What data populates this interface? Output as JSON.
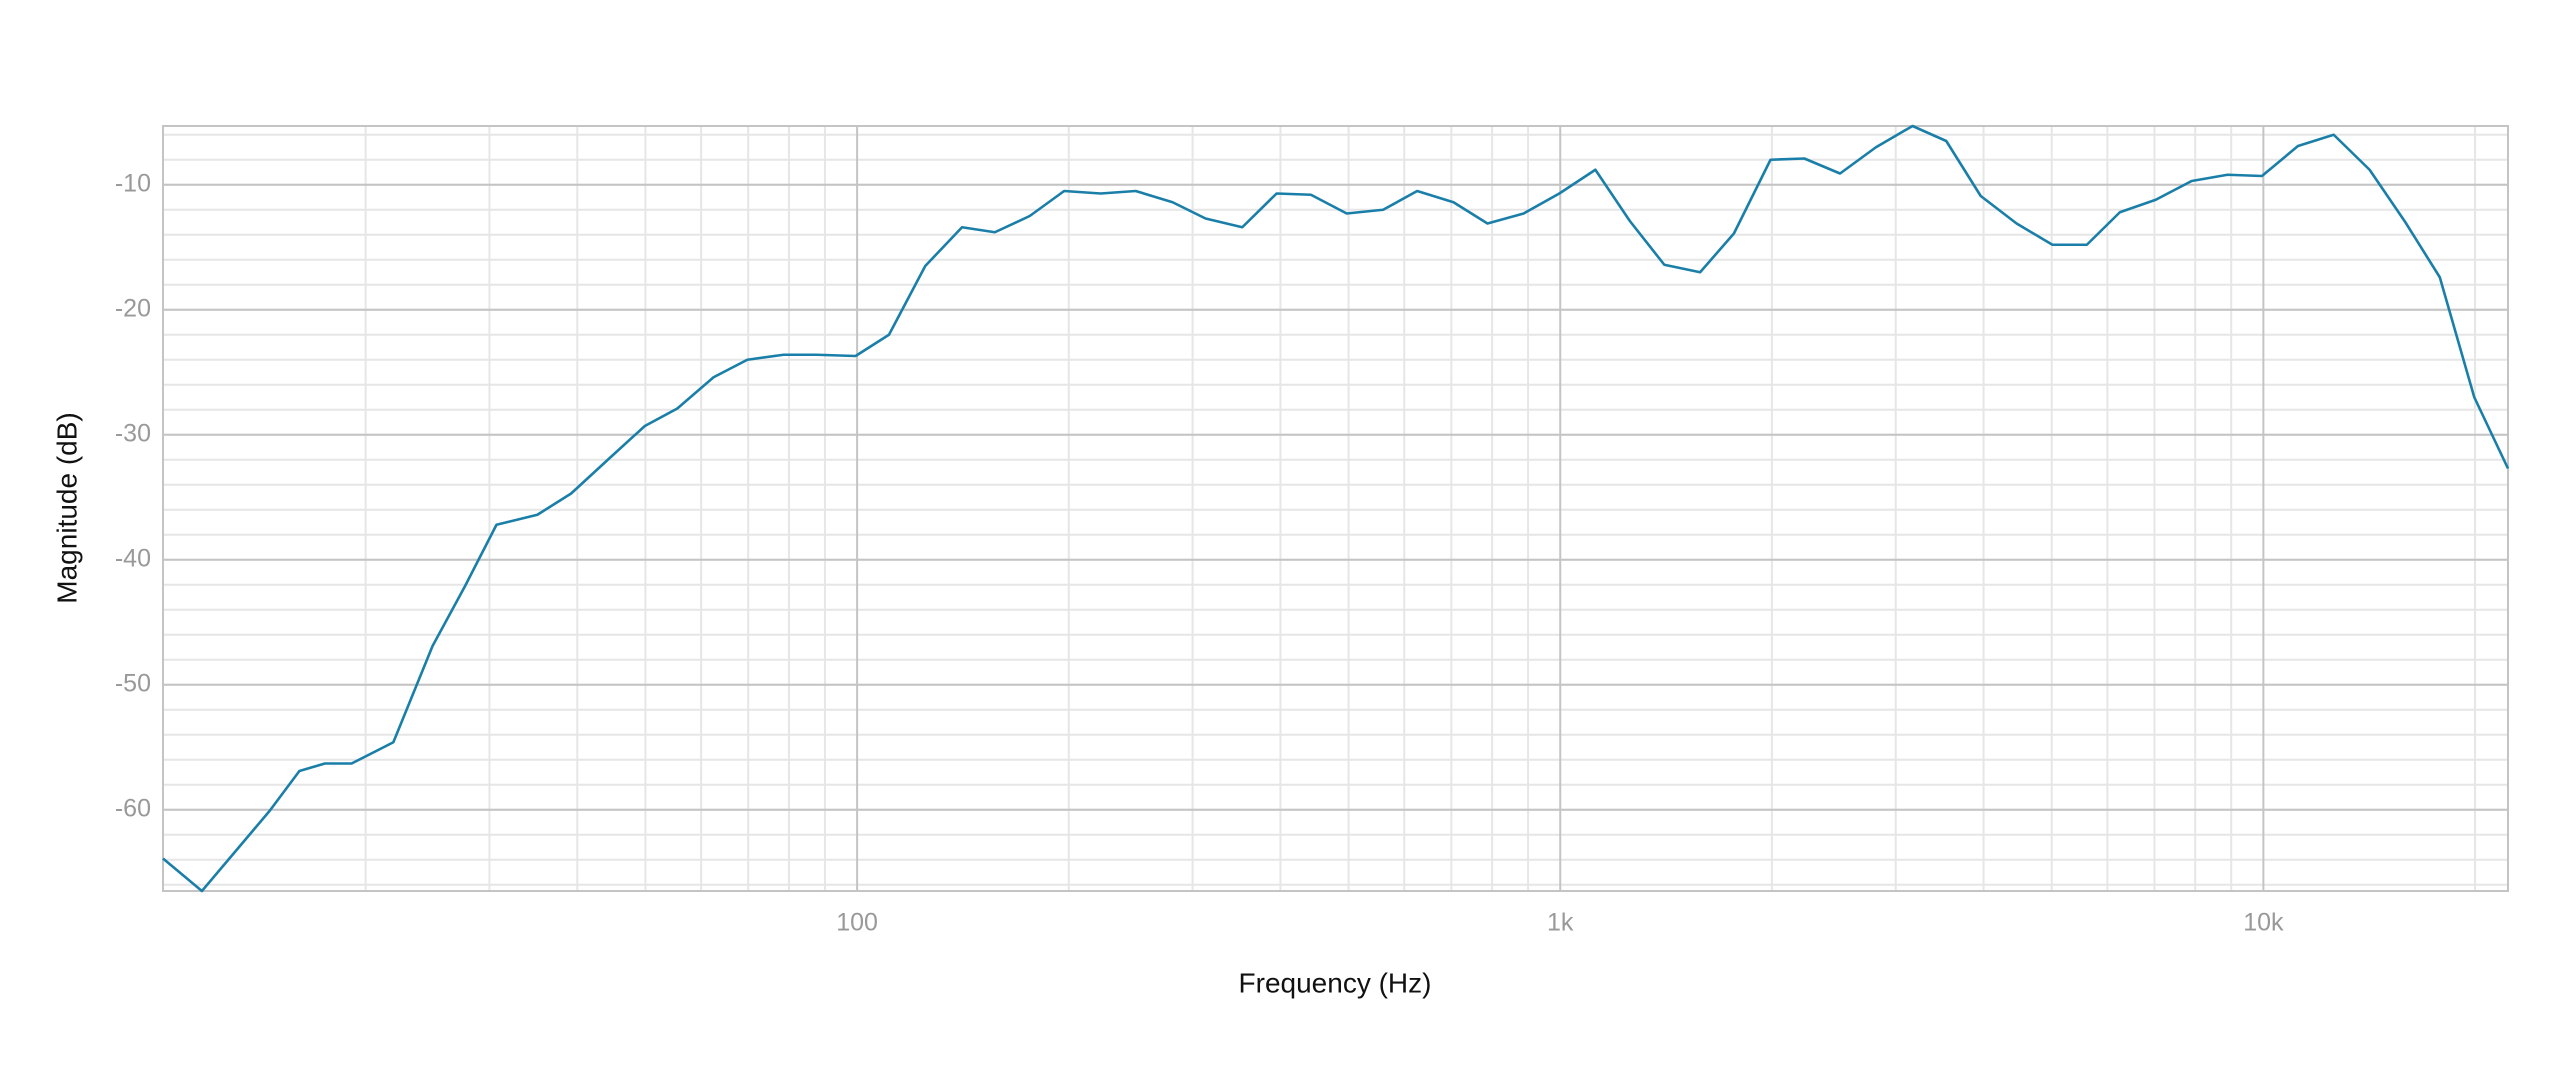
{
  "chart_data": {
    "type": "line",
    "x_label": "Frequency (Hz)",
    "y_label": "Magnitude (dB)",
    "x_scale": "log",
    "grid": true,
    "xlim": [
      10.3,
      22280
    ],
    "ylim": [
      -66.5,
      -5.3
    ],
    "xticks": [
      100,
      {
        "value": 1000,
        "label": "1k"
      },
      {
        "value": 10000,
        "label": "10k"
      }
    ],
    "yticks": [
      -60,
      -50,
      -40,
      -30,
      -20,
      -10
    ],
    "x": [
      10.3,
      11.7,
      14.6,
      16.1,
      17.5,
      19.1,
      21.9,
      24.9,
      27.7,
      30.7,
      35.1,
      39.2,
      44.4,
      49.9,
      55.5,
      62.5,
      69.8,
      78.6,
      87.5,
      99.5,
      111,
      125,
      141,
      157,
      176,
      197,
      222,
      249,
      281,
      313,
      353,
      395,
      442,
      497,
      560,
      626,
      705,
      788,
      887,
      997,
      1122,
      1256,
      1406,
      1581,
      1766,
      1991,
      2224,
      2500,
      2812,
      3170,
      3540,
      3963,
      4457,
      5012,
      5610,
      6250,
      7030,
      7907,
      8892,
      9954,
      11200,
      12590,
      14160,
      15920,
      17820,
      19950,
      22280
    ],
    "series": [
      {
        "color": "#1a7fa8",
        "values": [
          -63.9,
          -66.5,
          -60.1,
          -56.9,
          -56.3,
          -56.3,
          -54.6,
          -46.9,
          -42.1,
          -37.2,
          -36.4,
          -34.7,
          -31.9,
          -29.3,
          -27.9,
          -25.4,
          -24.0,
          -23.6,
          -23.6,
          -23.7,
          -22.0,
          -16.5,
          -13.4,
          -13.8,
          -12.5,
          -10.5,
          -10.7,
          -10.5,
          -11.4,
          -12.7,
          -13.4,
          -10.7,
          -10.8,
          -12.3,
          -12.0,
          -10.5,
          -11.4,
          -13.1,
          -12.3,
          -10.7,
          -8.8,
          -12.9,
          -16.4,
          -17.0,
          -13.9,
          -8.0,
          -7.9,
          -9.1,
          -7.0,
          -5.3,
          -6.5,
          -10.9,
          -13.1,
          -14.8,
          -14.8,
          -12.2,
          -11.2,
          -9.7,
          -9.2,
          -9.3,
          -6.9,
          -6.0,
          -8.8,
          -13.0,
          -17.4,
          -27.0,
          -32.7
        ]
      }
    ]
  }
}
